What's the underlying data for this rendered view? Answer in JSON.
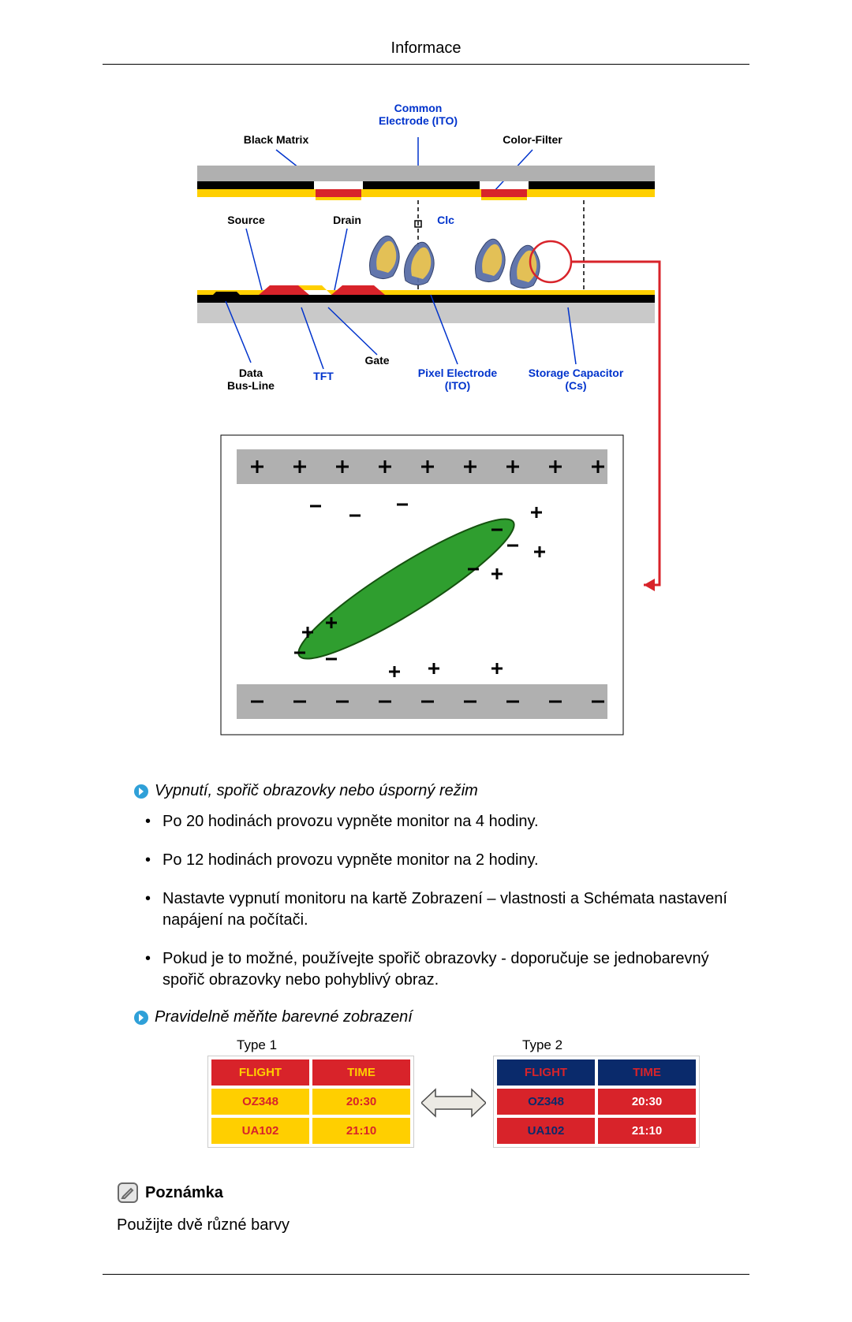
{
  "header": {
    "title": "Informace"
  },
  "diagram": {
    "labels": {
      "black_matrix": "Black Matrix",
      "common_electrode": "Common\nElectrode (ITO)",
      "color_filter": "Color-Filter",
      "source": "Source",
      "drain": "Drain",
      "clc": "Clc",
      "data_bus_line": "Data\nBus-Line",
      "tft": "TFT",
      "gate": "Gate",
      "pixel_electrode": "Pixel Electrode\n(ITO)",
      "storage_capacitor": "Storage Capacitor\n(Cs)"
    },
    "colors": {
      "label_black": "#000000",
      "label_blue": "#0033cc",
      "layer_sub_top": "#b0b0b0",
      "layer_black": "#000000",
      "layer_red": "#d8232a",
      "layer_yellow": "#ffcf00",
      "layer_blue": "#0f3e8a",
      "layer_sub_bottom": "#c9c9c9",
      "pointer": "#0033cc",
      "circle": "#d8232a",
      "callout_line": "#d8232a",
      "lc_bar": "#b0b0b0",
      "lc_bg": "#ffffff",
      "lc_crystal": "#2f9e2f",
      "lc_crystal_stroke": "#15520f",
      "plus_minus": "#000000"
    },
    "font_family": "Arial",
    "label_fontsize": 14
  },
  "section1": {
    "heading": "Vypnutí, spořič obrazovky nebo úsporný režim",
    "items": [
      "Po 20 hodinách provozu vypněte monitor na 4 hodiny.",
      "Po 12 hodinách provozu vypněte monitor na 2 hodiny.",
      "Nastavte vypnutí monitoru na kartě Zobrazení – vlastnosti a Schémata nastavení napájení na počítači.",
      "Pokud je to možné, používejte spořič obrazovky - doporučuje se jednobarevný spořič obrazovky nebo pohyblivý obraz."
    ]
  },
  "section2": {
    "heading": "Pravidelně měňte barevné zobrazení",
    "type1_label": "Type 1",
    "type2_label": "Type 2",
    "columns": [
      "FLIGHT",
      "TIME"
    ],
    "rows": [
      [
        "OZ348",
        "20:30"
      ],
      [
        "UA102",
        "21:10"
      ]
    ],
    "type1_colors": {
      "header_bg": "#d8232a",
      "header_fg": "#ffcf00",
      "cell_bg": "#ffcf00",
      "cell_fg": "#d8232a"
    },
    "type2_colors": {
      "header_bg": "#0a2a6b",
      "header_fg": "#d8232a",
      "cell_bg": "#d8232a",
      "cell_fg": "#0a2a6b",
      "cell_fg2": "#ffffff"
    }
  },
  "note": {
    "label": "Poznámka",
    "body": "Použijte dvě různé barvy"
  },
  "icons": {
    "arrow_circle_bg": "#2fa0d8",
    "arrow_circle_fg": "#ffffff",
    "note_stroke": "#6a6a6a",
    "note_fill": "#e6e6e6",
    "swap_arrow_fill": "#eceae4",
    "swap_arrow_stroke": "#4a4a4a"
  }
}
